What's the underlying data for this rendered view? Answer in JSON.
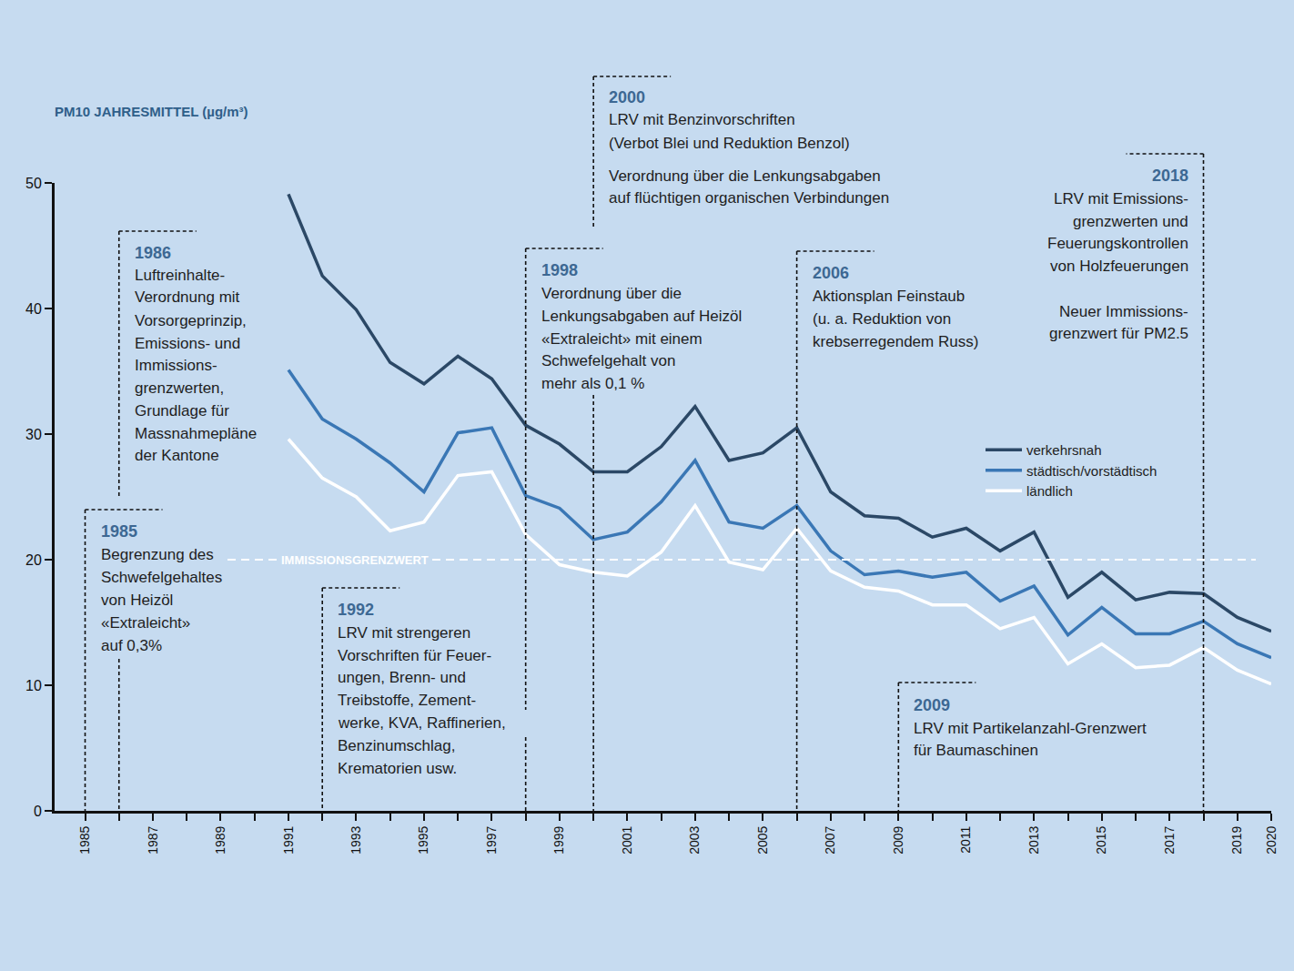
{
  "chart_data": {
    "type": "line",
    "title": "PM10 JAHRESMITTEL (µg/m³)",
    "x": [
      1991,
      1992,
      1993,
      1994,
      1995,
      1996,
      1997,
      1998,
      1999,
      2000,
      2001,
      2002,
      2003,
      2004,
      2005,
      2006,
      2007,
      2008,
      2009,
      2010,
      2011,
      2012,
      2013,
      2014,
      2015,
      2016,
      2017,
      2018,
      2019,
      2020
    ],
    "series": [
      {
        "name": "verkehrsnah",
        "color": "#2b4866",
        "values": [
          49.1,
          42.6,
          39.9,
          35.7,
          34.0,
          36.2,
          34.4,
          30.7,
          29.2,
          27.0,
          27.0,
          29.0,
          32.2,
          27.9,
          28.5,
          30.5,
          25.4,
          23.5,
          23.3,
          21.8,
          22.5,
          20.7,
          22.2,
          17.0,
          19.0,
          16.8,
          17.4,
          17.3,
          15.4,
          14.3
        ]
      },
      {
        "name": "städtisch/vorstädtisch",
        "color": "#3a77b5",
        "values": [
          35.1,
          31.2,
          29.6,
          27.7,
          25.4,
          30.1,
          30.5,
          25.1,
          24.1,
          21.6,
          22.2,
          24.6,
          27.9,
          23.0,
          22.5,
          24.3,
          20.7,
          18.8,
          19.1,
          18.6,
          19.0,
          16.7,
          17.9,
          14.0,
          16.2,
          14.1,
          14.1,
          15.1,
          13.3,
          12.2
        ]
      },
      {
        "name": "ländlich",
        "color": "#ffffff",
        "values": [
          29.6,
          26.5,
          25.0,
          22.3,
          23.0,
          26.7,
          27.0,
          22.0,
          19.6,
          19.0,
          18.7,
          20.6,
          24.3,
          19.8,
          19.2,
          22.5,
          19.1,
          17.8,
          17.5,
          16.4,
          16.4,
          14.5,
          15.4,
          11.7,
          13.3,
          11.4,
          11.6,
          13.0,
          11.2,
          10.1
        ]
      }
    ],
    "xlim": [
      1984.1,
      2020
    ],
    "xticks": [
      1985,
      1987,
      1989,
      1991,
      1993,
      1995,
      1997,
      1999,
      2001,
      2003,
      2005,
      2007,
      2009,
      2011,
      2013,
      2015,
      2017,
      2019,
      2020
    ],
    "ylim": [
      0,
      50
    ],
    "yticks": [
      0,
      10,
      20,
      30,
      40,
      50
    ],
    "grid": false,
    "legend": "right",
    "reference_line": {
      "value": 20,
      "label": "IMMISSIONSGRENZWERT"
    },
    "events": [
      {
        "year": 1985,
        "lines": [
          "Begrenzung des",
          "Schwefelgehaltes",
          "von Heizöl",
          "«Extraleicht»",
          "auf 0,3%"
        ]
      },
      {
        "year": 1986,
        "lines": [
          "Luftreinhalte-",
          "Verordnung mit",
          "Vorsorgeprinzip,",
          "Emissions- und",
          "Immissions-",
          "grenzwerten,",
          "Grundlage für",
          "Massnahmepläne",
          "der Kantone"
        ]
      },
      {
        "year": 1992,
        "lines": [
          "LRV mit strengeren",
          "Vorschriften für Feuer-",
          "ungen, Brenn- und",
          "Treibstoffe, Zement-",
          "werke, KVA, Raffinerien,",
          "Benzinumschlag,",
          "Krematorien usw."
        ]
      },
      {
        "year": 1998,
        "lines": [
          "Verordnung über die",
          "Lenkungsabgaben auf Heizöl",
          "«Extraleicht» mit einem",
          "Schwefelgehalt von",
          "mehr als 0,1 %"
        ]
      },
      {
        "year": 2000,
        "lines": [
          "LRV mit Benzinvorschriften",
          "(Verbot Blei und Reduktion Benzol)",
          "Verordnung über die Lenkungsabgaben",
          "auf flüchtigen organischen Verbindungen"
        ]
      },
      {
        "year": 2006,
        "lines": [
          "Aktionsplan Feinstaub",
          "(u. a. Reduktion von",
          "krebserregendem Russ)"
        ]
      },
      {
        "year": 2009,
        "lines": [
          "LRV mit Partikelanzahl-Grenzwert",
          "für Baumaschinen"
        ]
      },
      {
        "year": 2018,
        "lines": [
          "LRV mit Emissions-",
          "grenzwerten und",
          "Feuerungskontrollen",
          "von Holzfeuerungen",
          "Neuer Immissions-",
          "grenzwert für PM2.5"
        ]
      }
    ]
  }
}
